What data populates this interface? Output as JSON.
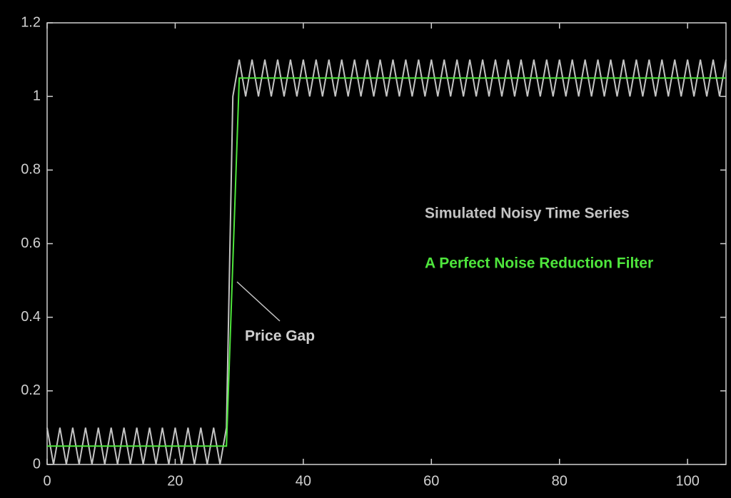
{
  "chart_data": {
    "type": "line",
    "x": [
      0,
      1,
      2,
      3,
      4,
      5,
      6,
      7,
      8,
      9,
      10,
      11,
      12,
      13,
      14,
      15,
      16,
      17,
      18,
      19,
      20,
      21,
      22,
      23,
      24,
      25,
      26,
      27,
      28,
      29,
      30,
      31,
      32,
      33,
      34,
      35,
      36,
      37,
      38,
      39,
      40,
      41,
      42,
      43,
      44,
      45,
      46,
      47,
      48,
      49,
      50,
      51,
      52,
      53,
      54,
      55,
      56,
      57,
      58,
      59,
      60,
      61,
      62,
      63,
      64,
      65,
      66,
      67,
      68,
      69,
      70,
      71,
      72,
      73,
      74,
      75,
      76,
      77,
      78,
      79,
      80,
      81,
      82,
      83,
      84,
      85,
      86,
      87,
      88,
      89,
      90,
      91,
      92,
      93,
      94,
      95,
      96,
      97,
      98,
      99,
      100,
      101,
      102,
      103,
      104,
      105,
      106
    ],
    "series": [
      {
        "name": "Simulated Noisy Time Series",
        "color": "#c4c4c4",
        "values": [
          0.1,
          0,
          0.1,
          0,
          0.1,
          0,
          0.1,
          0,
          0.1,
          0,
          0.1,
          0,
          0.1,
          0,
          0.1,
          0,
          0.1,
          0,
          0.1,
          0,
          0.1,
          0,
          0.1,
          0,
          0.1,
          0,
          0.1,
          0,
          0.1,
          1,
          1.1,
          1,
          1.1,
          1,
          1.1,
          1,
          1.1,
          1,
          1.1,
          1,
          1.1,
          1,
          1.1,
          1,
          1.1,
          1,
          1.1,
          1,
          1.1,
          1,
          1.1,
          1,
          1.1,
          1,
          1.1,
          1,
          1.1,
          1,
          1.1,
          1,
          1.1,
          1,
          1.1,
          1,
          1.1,
          1,
          1.1,
          1,
          1.1,
          1,
          1.1,
          1,
          1.1,
          1,
          1.1,
          1,
          1.1,
          1,
          1.1,
          1,
          1.1,
          1,
          1.1,
          1,
          1.1,
          1,
          1.1,
          1,
          1.1,
          1,
          1.1,
          1,
          1.1,
          1,
          1.1,
          1,
          1.1,
          1,
          1.1,
          1,
          1.1,
          1,
          1.1,
          1,
          1.1,
          1,
          1.1
        ]
      },
      {
        "name": "A Perfect Noise Reduction Filter",
        "color": "#4ee63c",
        "values": [
          0.05,
          0.05,
          0.05,
          0.05,
          0.05,
          0.05,
          0.05,
          0.05,
          0.05,
          0.05,
          0.05,
          0.05,
          0.05,
          0.05,
          0.05,
          0.05,
          0.05,
          0.05,
          0.05,
          0.05,
          0.05,
          0.05,
          0.05,
          0.05,
          0.05,
          0.05,
          0.05,
          0.05,
          0.05,
          0.55,
          1.05,
          1.05,
          1.05,
          1.05,
          1.05,
          1.05,
          1.05,
          1.05,
          1.05,
          1.05,
          1.05,
          1.05,
          1.05,
          1.05,
          1.05,
          1.05,
          1.05,
          1.05,
          1.05,
          1.05,
          1.05,
          1.05,
          1.05,
          1.05,
          1.05,
          1.05,
          1.05,
          1.05,
          1.05,
          1.05,
          1.05,
          1.05,
          1.05,
          1.05,
          1.05,
          1.05,
          1.05,
          1.05,
          1.05,
          1.05,
          1.05,
          1.05,
          1.05,
          1.05,
          1.05,
          1.05,
          1.05,
          1.05,
          1.05,
          1.05,
          1.05,
          1.05,
          1.05,
          1.05,
          1.05,
          1.05,
          1.05,
          1.05,
          1.05,
          1.05,
          1.05,
          1.05,
          1.05,
          1.05,
          1.05,
          1.05,
          1.05,
          1.05,
          1.05,
          1.05,
          1.05,
          1.05,
          1.05,
          1.05,
          1.05,
          1.05,
          1.05
        ]
      }
    ],
    "xlim": [
      0,
      106
    ],
    "ylim": [
      0,
      1.2
    ],
    "xticks": [
      0,
      20,
      40,
      60,
      80,
      100
    ],
    "yticks": [
      0,
      0.2,
      0.4,
      0.6,
      0.8,
      1,
      1.2
    ],
    "annotations": [
      "Price Gap"
    ]
  }
}
